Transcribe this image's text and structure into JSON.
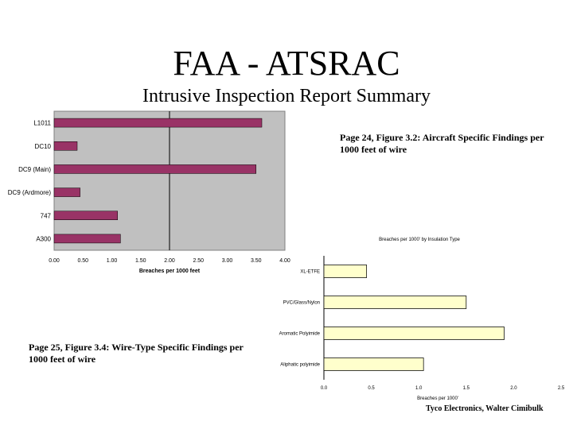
{
  "header": {
    "title": "FAA - ATSRAC",
    "subtitle": "Intrusive Inspection Report Summary"
  },
  "captions": {
    "figure_3_2": "Page 24, Figure 3.2: Aircraft Specific Findings per 1000 feet of wire",
    "figure_3_4": "Page 25, Figure 3.4: Wire-Type Specific Findings per 1000 feet of wire"
  },
  "footer": {
    "credit": "Tyco Electronics, Walter Cimibulk"
  },
  "colors": {
    "chart1_bar": "#993366",
    "chart1_plot_bg": "#c0c0c0",
    "chart2_bar": "#ffffcc"
  },
  "chart_data": [
    {
      "type": "bar",
      "orientation": "horizontal",
      "title": "",
      "xlabel": "Breaches per 1000 feet",
      "ylabel": "",
      "categories": [
        "L1011",
        "DC10",
        "DC9 (Main)",
        "DC9 (Ardmore)",
        "747",
        "A300"
      ],
      "values": [
        3.6,
        0.4,
        3.5,
        0.45,
        1.1,
        1.15
      ],
      "xlim": [
        0,
        4
      ],
      "xticks": [
        "0.00",
        "0.50",
        "1.00",
        "1.50",
        "2.00",
        "2.50",
        "3.00",
        "3.50",
        "4.00"
      ],
      "reference_line": 2.0
    },
    {
      "type": "bar",
      "orientation": "horizontal",
      "title": "Breaches per 1000' by Insulation Type",
      "xlabel": "Breaches per 1000'",
      "ylabel": "",
      "categories": [
        "XL-ETFE",
        "PVC/Glass/Nylon",
        "Aromatic Polyimide",
        "Aliphatic polyimide"
      ],
      "values": [
        0.45,
        1.5,
        1.9,
        1.05
      ],
      "xlim": [
        0,
        2.5
      ],
      "xticks": [
        "0.0",
        "0.5",
        "1.0",
        "1.5",
        "2.0",
        "2.5"
      ]
    }
  ]
}
